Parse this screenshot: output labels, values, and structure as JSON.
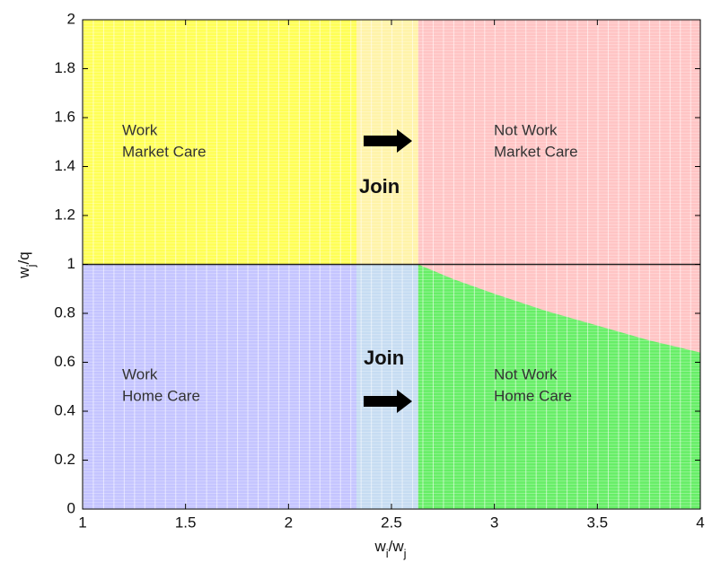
{
  "chart_data": {
    "type": "region",
    "xlim": [
      1,
      4
    ],
    "ylim": [
      0,
      2
    ],
    "xticks": [
      1,
      1.5,
      2,
      2.5,
      3,
      3.5,
      4
    ],
    "yticks": [
      0,
      0.2,
      0.4,
      0.6,
      0.8,
      1,
      1.2,
      1.4,
      1.6,
      1.8,
      2
    ],
    "xlabel": [
      {
        "text": "w"
      },
      {
        "text": "i",
        "sub": true
      },
      {
        "text": "/w"
      },
      {
        "text": "j",
        "sub": true
      }
    ],
    "ylabel": [
      {
        "text": "w"
      },
      {
        "text": "j",
        "sub": true
      },
      {
        "text": "/q"
      }
    ],
    "x_boundaries": [
      2.33,
      2.63
    ],
    "y_boundary": 1,
    "curve": {
      "x": [
        2.63,
        2.8,
        3,
        3.25,
        3.5,
        3.75,
        4
      ],
      "y": [
        1,
        0.94,
        0.88,
        0.81,
        0.75,
        0.69,
        0.64
      ]
    },
    "colors": {
      "work_market": "#ffff55",
      "join_market": "#fff3a8",
      "not_work_market": "#ffc4c4",
      "work_home": "#c4c4ff",
      "join_home": "#c6dcf2",
      "not_work_home": "#66ee66"
    },
    "regions": {
      "work_market": [
        "Work",
        "Market Care"
      ],
      "not_work_market": [
        "Not Work",
        "Market Care"
      ],
      "work_home": [
        "Work",
        "Home Care"
      ],
      "not_work_home": [
        "Not Work",
        "Home Care"
      ]
    },
    "annotations": [
      "Join",
      "Join"
    ]
  }
}
